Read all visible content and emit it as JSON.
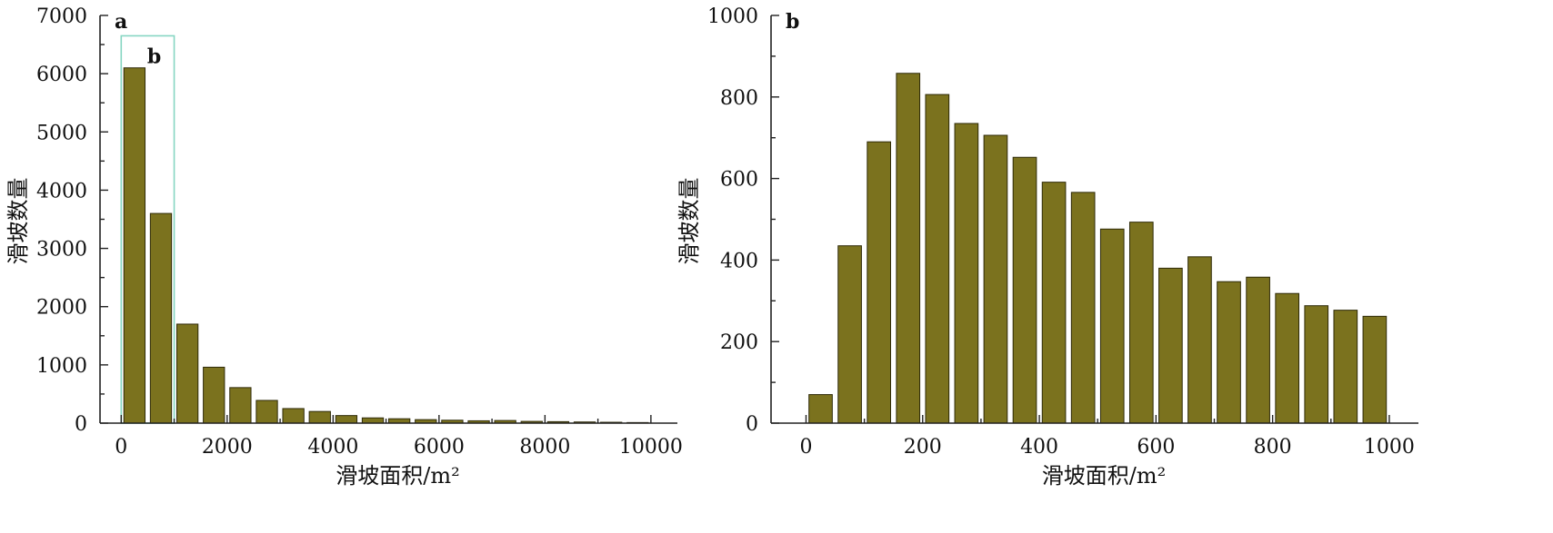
{
  "colors": {
    "bar_fill": "#7b721e",
    "bar_stroke": "#2e2a08",
    "inset_box": "#86d6c2"
  },
  "chart_data": [
    {
      "type": "bar",
      "panel_label": "a",
      "inset_label": "b",
      "inset_box_x_range": [
        0,
        1000
      ],
      "inset_box_top": 6650,
      "x": [
        250,
        750,
        1250,
        1750,
        2250,
        2750,
        3250,
        3750,
        4250,
        4750,
        5250,
        5750,
        6250,
        6750,
        7250,
        7750,
        8250,
        8750,
        9250,
        9750
      ],
      "values": [
        6100,
        3600,
        1700,
        960,
        610,
        390,
        250,
        200,
        130,
        90,
        75,
        60,
        50,
        40,
        45,
        30,
        25,
        20,
        15,
        10
      ],
      "bin_width": 500,
      "xlim": [
        -400,
        10500
      ],
      "ylim": [
        0,
        7000
      ],
      "xticks": [
        0,
        2000,
        4000,
        6000,
        8000,
        10000
      ],
      "xtick_labels": [
        "0",
        "2000",
        "4000",
        "6000",
        "8000",
        "10000"
      ],
      "yticks": [
        0,
        1000,
        2000,
        3000,
        4000,
        5000,
        6000,
        7000
      ],
      "ytick_labels": [
        "0",
        "1000",
        "2000",
        "3000",
        "4000",
        "5000",
        "6000",
        "7000"
      ],
      "xlabel": "滑坡面积/m²",
      "ylabel": "滑坡数量"
    },
    {
      "type": "bar",
      "panel_label": "b",
      "x": [
        25,
        75,
        125,
        175,
        225,
        275,
        325,
        375,
        425,
        475,
        525,
        575,
        625,
        675,
        725,
        775,
        825,
        875,
        925,
        975
      ],
      "values": [
        70,
        435,
        690,
        858,
        806,
        735,
        706,
        652,
        591,
        566,
        476,
        493,
        380,
        408,
        347,
        358,
        318,
        288,
        277,
        262
      ],
      "bin_width": 50,
      "xlim": [
        -60,
        1050
      ],
      "ylim": [
        0,
        1000
      ],
      "xticks": [
        0,
        200,
        400,
        600,
        800,
        1000
      ],
      "xtick_labels": [
        "0",
        "200",
        "400",
        "600",
        "800",
        "1000"
      ],
      "yticks": [
        0,
        200,
        400,
        600,
        800,
        1000
      ],
      "ytick_labels": [
        "0",
        "200",
        "400",
        "600",
        "800",
        "1000"
      ],
      "xlabel": "滑坡面积/m²",
      "ylabel": "滑坡数量"
    }
  ]
}
